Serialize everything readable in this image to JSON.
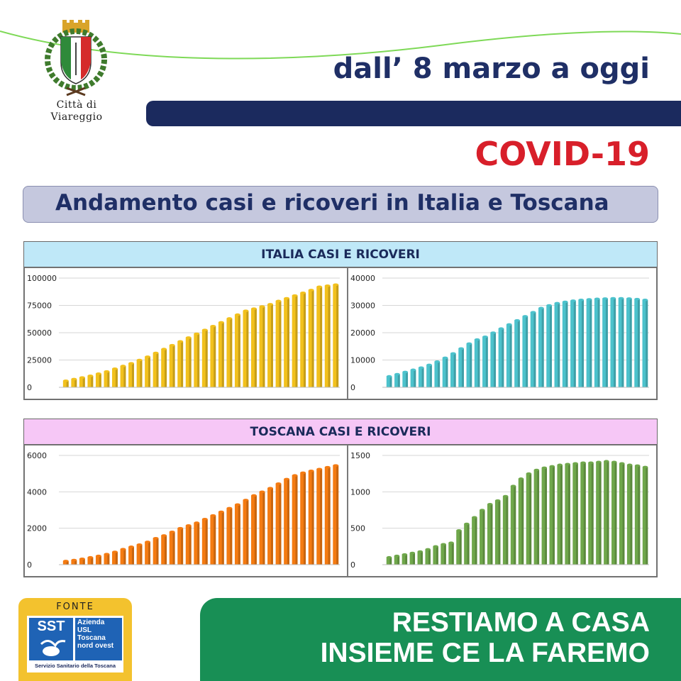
{
  "header": {
    "city_line1": "Città di",
    "city_line2": "Viareggio",
    "date_title": "dall’ 8 marzo a oggi",
    "covid": "COVID-19",
    "subtitle": "Andamento casi e ricoveri in Italia e Toscana"
  },
  "sections": {
    "italia": {
      "title": "ITALIA CASI E RICOVERI",
      "color": "#bfe8f8"
    },
    "toscana": {
      "title": "TOSCANA CASI E RICOVERI",
      "color": "#f6c7f6"
    }
  },
  "footer": {
    "fonte": "FONTE",
    "logo_sst": "SST",
    "logo_azienda": "Azienda",
    "logo_usl": "USL",
    "logo_toscana": "Toscana",
    "logo_nordovest": "nord ovest",
    "logo_servizio": "Servizio Sanitario della Toscana",
    "slogan_line1": "RESTIAMO A CASA",
    "slogan_line2": "INSIEME CE LA FAREMO"
  },
  "colors": {
    "navy": "#1b2a5e",
    "red": "#d81f2a",
    "green": "#188f55",
    "yellow": "#f3c22e"
  },
  "chart_data": [
    {
      "type": "bar",
      "id": "italia-casi",
      "color": "#f2c11d",
      "ylim": [
        0,
        100000
      ],
      "yticks": [
        0,
        25000,
        50000,
        75000,
        100000
      ],
      "title": "",
      "xlabel": "",
      "ylabel": "",
      "values": [
        6000,
        7500,
        9000,
        10500,
        12500,
        14500,
        17000,
        19500,
        22000,
        25000,
        28000,
        31500,
        35000,
        38500,
        42000,
        45500,
        49000,
        52500,
        56000,
        59500,
        63000,
        66500,
        70000,
        72000,
        74000,
        76000,
        79000,
        81500,
        84000,
        86500,
        89000,
        92000,
        93000,
        94000
      ]
    },
    {
      "type": "bar",
      "id": "italia-ricoveri",
      "color": "#4cc2cc",
      "ylim": [
        0,
        40000
      ],
      "yticks": [
        0,
        10000,
        20000,
        30000,
        40000
      ],
      "title": "",
      "xlabel": "",
      "ylabel": "",
      "values": [
        4000,
        4800,
        5600,
        6400,
        7200,
        8200,
        9400,
        10800,
        12400,
        14200,
        16000,
        17500,
        18500,
        20000,
        21500,
        23000,
        24500,
        26000,
        27500,
        29000,
        30000,
        30800,
        31300,
        31700,
        32000,
        32200,
        32400,
        32500,
        32600,
        32600,
        32500,
        32300,
        32000
      ]
    },
    {
      "type": "bar",
      "id": "toscana-casi",
      "color": "#f47b12",
      "ylim": [
        0,
        6000
      ],
      "yticks": [
        0,
        2000,
        4000,
        6000
      ],
      "title": "",
      "xlabel": "",
      "ylabel": "",
      "values": [
        200,
        250,
        320,
        400,
        480,
        580,
        700,
        850,
        980,
        1100,
        1250,
        1450,
        1600,
        1800,
        2000,
        2150,
        2300,
        2500,
        2700,
        2900,
        3100,
        3300,
        3550,
        3800,
        4000,
        4200,
        4450,
        4700,
        4900,
        5050,
        5150,
        5250,
        5350,
        5450
      ]
    },
    {
      "type": "bar",
      "id": "toscana-ricoveri",
      "color": "#6fa74b",
      "ylim": [
        0,
        1500
      ],
      "yticks": [
        0,
        500,
        1000,
        1500
      ],
      "title": "",
      "xlabel": "",
      "ylabel": "",
      "values": [
        100,
        120,
        140,
        160,
        180,
        210,
        250,
        280,
        300,
        470,
        560,
        650,
        750,
        830,
        880,
        940,
        1080,
        1180,
        1250,
        1300,
        1330,
        1350,
        1370,
        1380,
        1390,
        1400,
        1400,
        1410,
        1420,
        1410,
        1390,
        1370,
        1360,
        1340
      ]
    }
  ]
}
